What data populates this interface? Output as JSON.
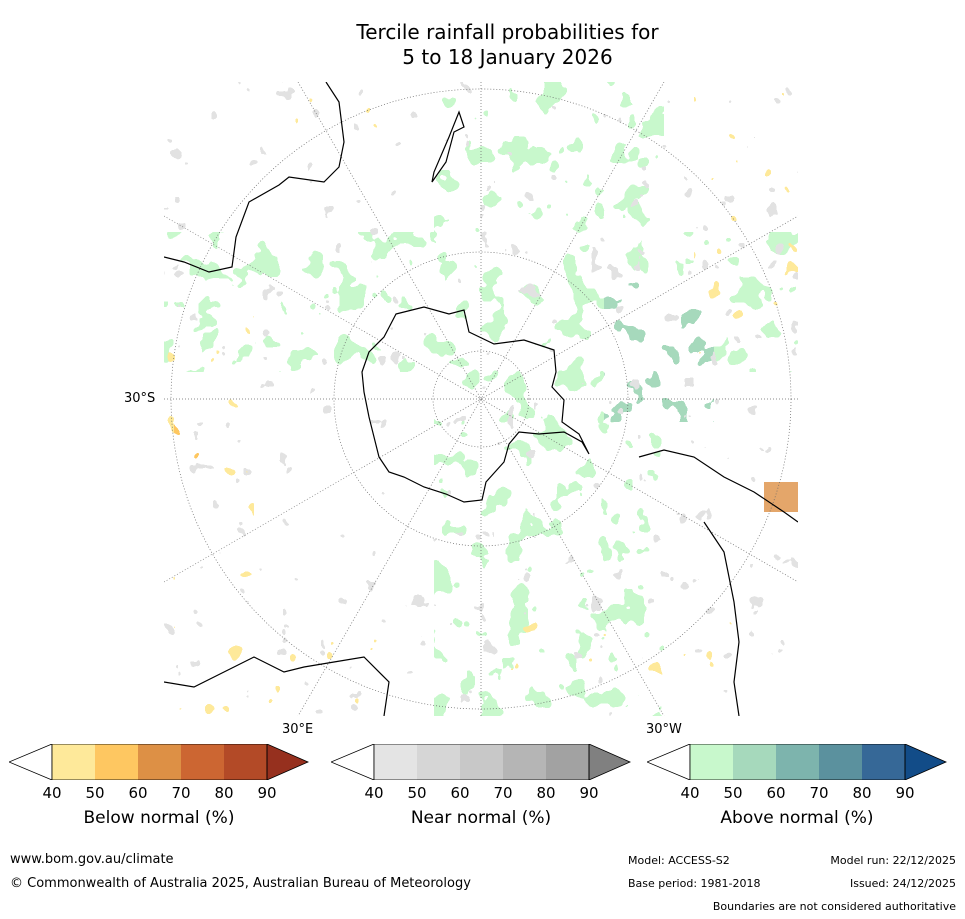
{
  "title": {
    "line1": "Tercile rainfall probabilities for",
    "line2": "5 to 18 January 2026"
  },
  "map": {
    "lat_label": "30°S",
    "lon_label_east": "30°E",
    "lon_label_west": "30°W"
  },
  "colorbars": [
    {
      "label": "Below normal (%)",
      "ticks": [
        "40",
        "50",
        "60",
        "70",
        "80",
        "90"
      ],
      "colors": [
        "#ffffff",
        "#fee99a",
        "#fec761",
        "#dd9045",
        "#cc6632",
        "#b34a27",
        "#96301e"
      ]
    },
    {
      "label": "Near normal (%)",
      "ticks": [
        "40",
        "50",
        "60",
        "70",
        "80",
        "90"
      ],
      "colors": [
        "#ffffff",
        "#e4e4e4",
        "#d6d6d6",
        "#c8c8c8",
        "#b5b5b5",
        "#a2a2a2",
        "#808080"
      ]
    },
    {
      "label": "Above normal (%)",
      "ticks": [
        "40",
        "50",
        "60",
        "70",
        "80",
        "90"
      ],
      "colors": [
        "#ffffff",
        "#c8f8cc",
        "#a6d9bc",
        "#7db4ad",
        "#5b919e",
        "#366897",
        "#124c88"
      ]
    }
  ],
  "footer": {
    "website": "www.bom.gov.au/climate",
    "copyright": "© Commonwealth of Australia 2025, Australian Bureau of Meteorology",
    "model": "Model: ACCESS-S2",
    "model_run": "Model run: 22/12/2025",
    "base_period": "Base period: 1981-2018",
    "issued": "Issued: 24/12/2025",
    "disclaimer": "Boundaries are not considered authoritative"
  }
}
